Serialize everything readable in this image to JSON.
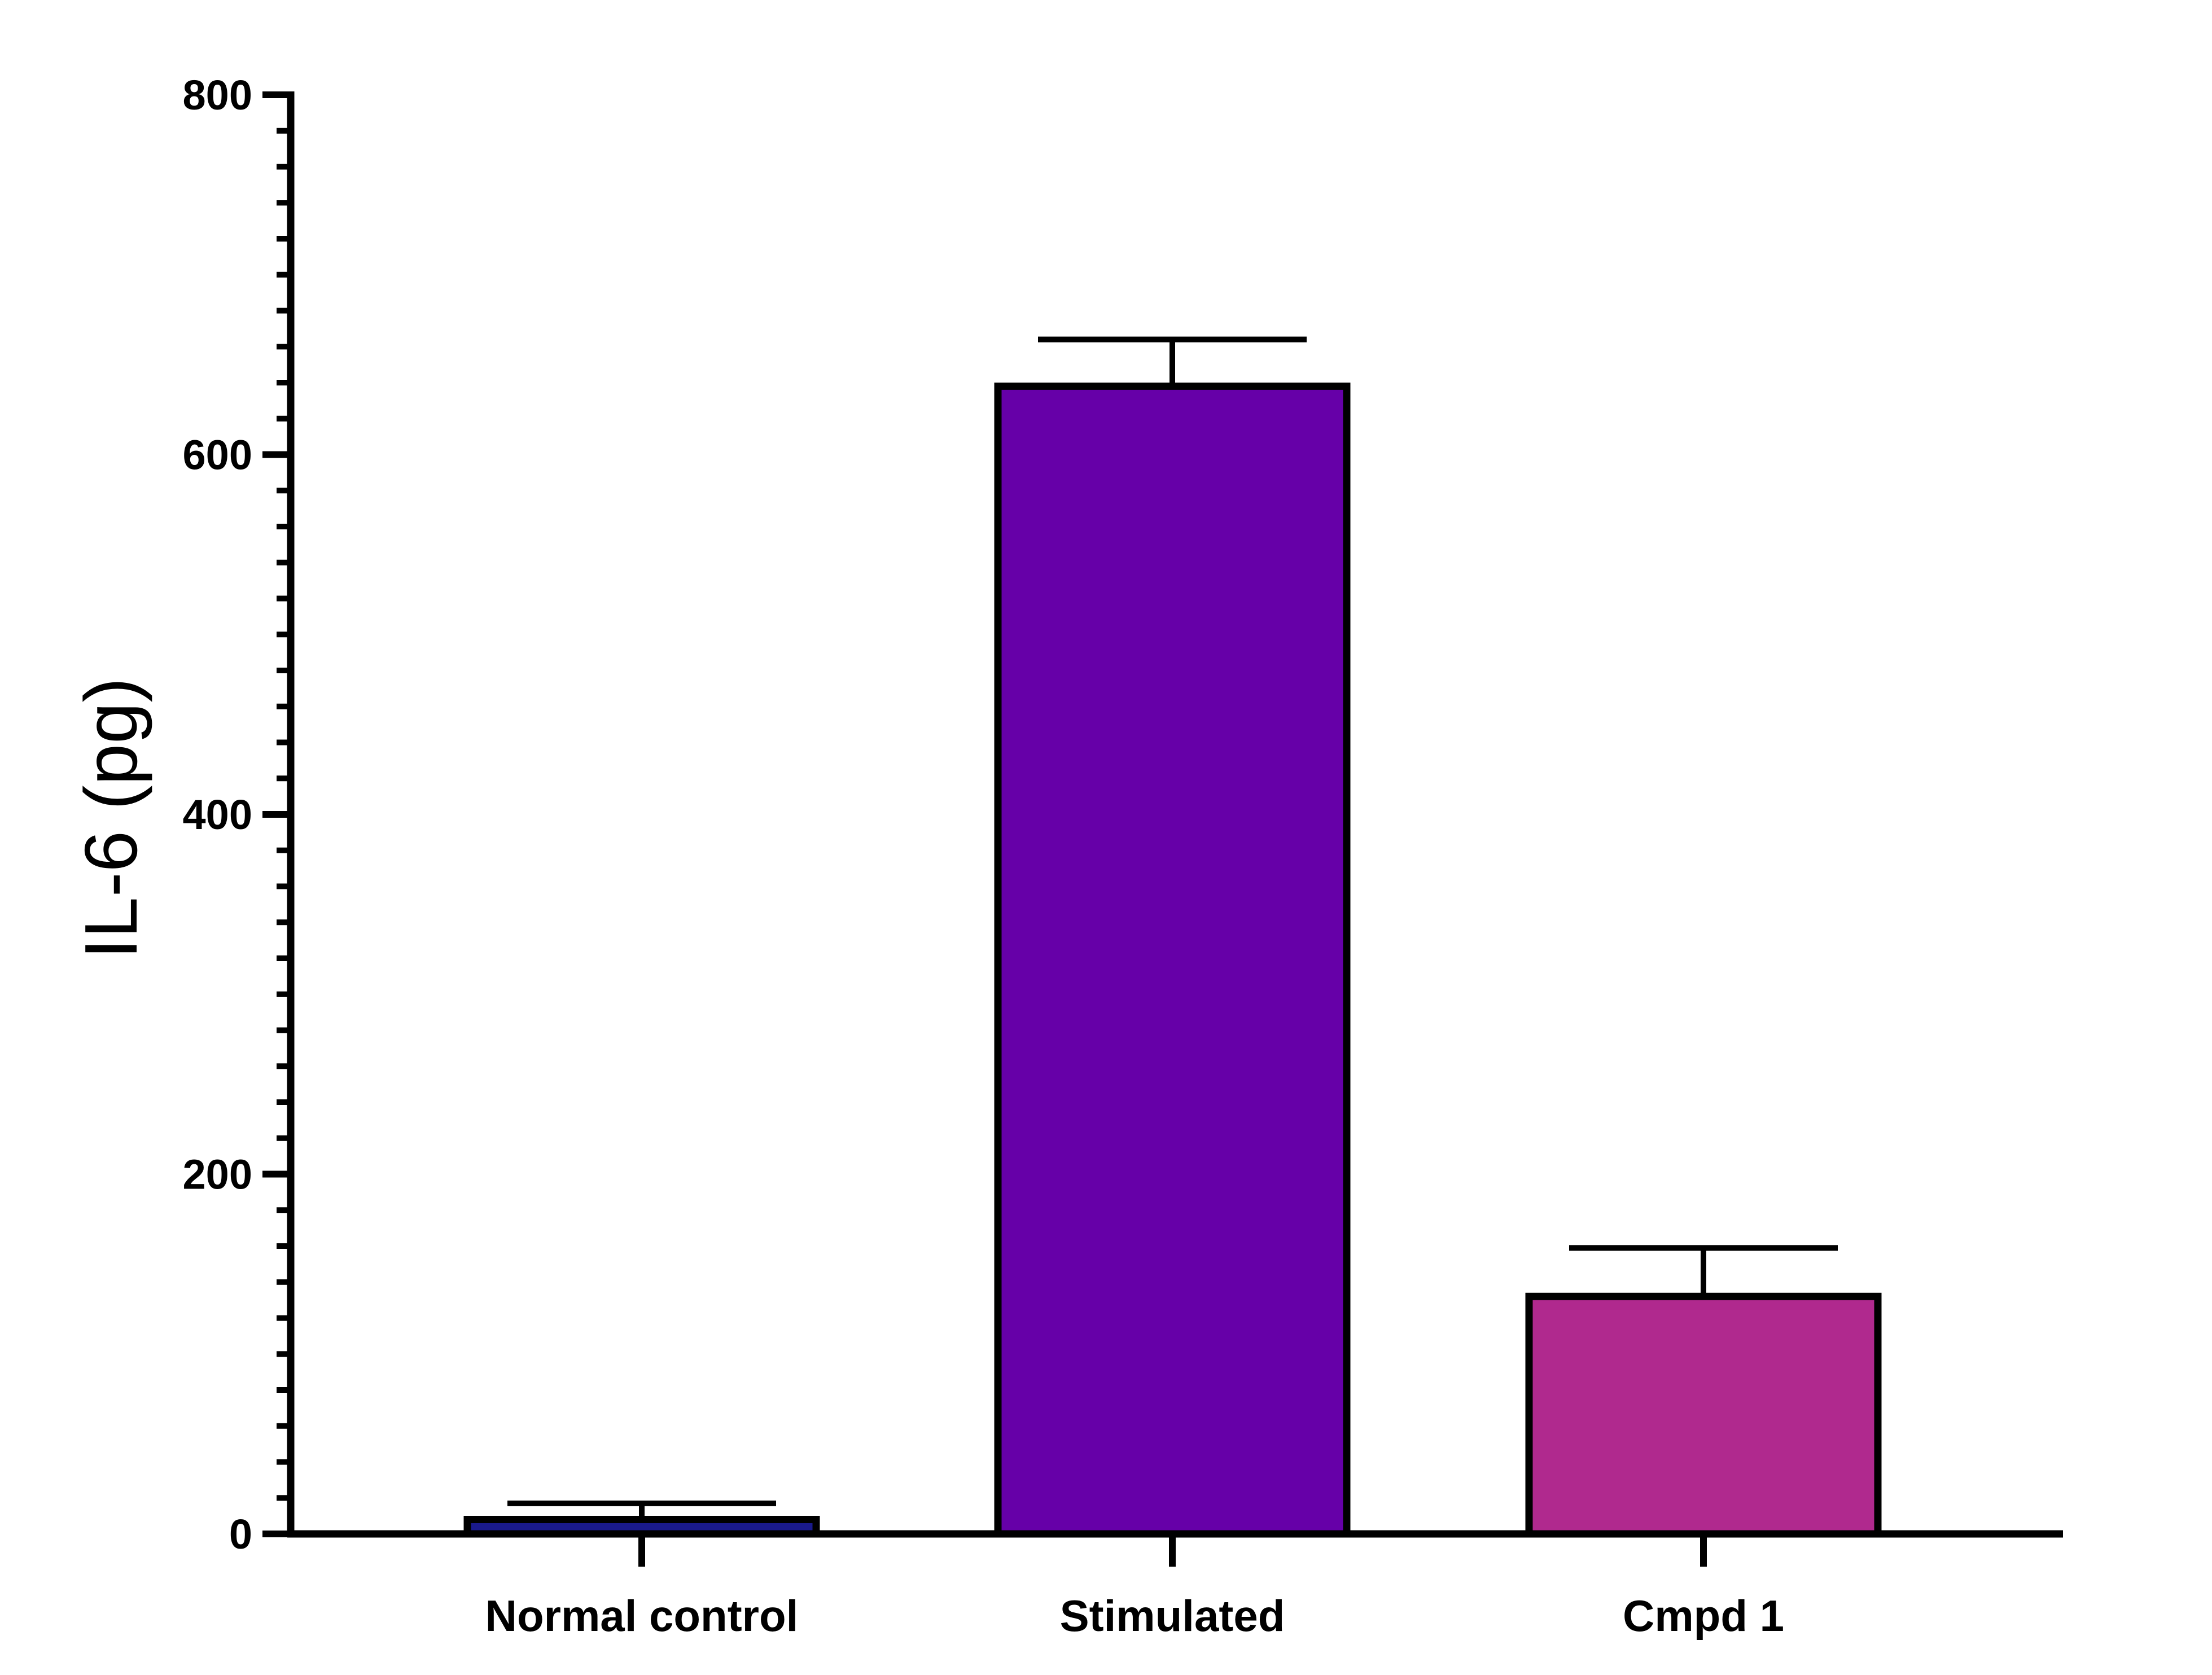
{
  "chart_data": {
    "type": "bar",
    "title": "",
    "xlabel": "",
    "ylabel": "IL-6  (pg)",
    "ylim": [
      0,
      800
    ],
    "y_major_ticks": [
      0,
      200,
      400,
      600,
      800
    ],
    "y_minor_tick_step": 20,
    "y_tick_labels": [
      "0",
      "200",
      "400",
      "600",
      "800"
    ],
    "categories": [
      "Normal control",
      "Stimulated",
      "Cmpd 1"
    ],
    "values": [
      8,
      638,
      132
    ],
    "error_upper": [
      17,
      664,
      159
    ],
    "colors": [
      "#1a1a8c",
      "#6600a8",
      "#b0298e"
    ],
    "grid": false,
    "legend": "none"
  }
}
